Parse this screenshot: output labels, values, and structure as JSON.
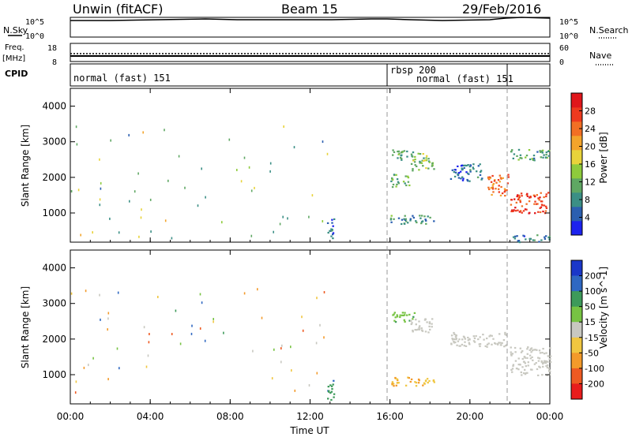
{
  "header": {
    "station": "Unwin (fitACF)",
    "beam": "Beam 15",
    "date": "29/Feb/2016"
  },
  "strip_labels": {
    "nsky": "N.Sky",
    "nsearch": "N.Search",
    "freq": "Freq.",
    "freq_unit": "[MHz]",
    "nave": "Nave",
    "cpid": "CPID"
  },
  "strip_ticks": {
    "noise_left_top": "10^5",
    "noise_left_bottom": "10^0",
    "noise_right_top": "10^5",
    "noise_right_bottom": "10^0",
    "freq_left_top": "18",
    "freq_left_bottom": "8",
    "nave_right_top": "60",
    "nave_right_bottom": "0"
  },
  "cpid": [
    {
      "label": "normal (fast) 151",
      "start_hour": 0,
      "end_hour": 16
    },
    {
      "label": "rbsp 200",
      "start_hour": 16,
      "end_hour": 22
    },
    {
      "label": "normal (fast) 151",
      "start_hour": 16,
      "end_hour": 22
    }
  ],
  "axes": {
    "time_ticks": [
      "00:00",
      "04:00",
      "08:00",
      "12:00",
      "16:00",
      "20:00",
      "00:00"
    ],
    "time_label": "Time UT",
    "range_ticks": [
      "1000",
      "2000",
      "3000",
      "4000"
    ],
    "range_label": "Slant Range [km]"
  },
  "power_scale": {
    "label": "Power [dB]",
    "ticks": [
      "4",
      "8",
      "12",
      "16",
      "20",
      "24",
      "28"
    ],
    "colors": [
      "#1c22ee",
      "#2b5fb0",
      "#3b8f85",
      "#5fa763",
      "#8ecb3c",
      "#e8d33a",
      "#f3a42b",
      "#f26f24",
      "#ee3a1e",
      "#e0161b"
    ]
  },
  "velocity_scale": {
    "label": "Velocity [m s^-1]",
    "ticks": [
      "200",
      "100",
      "50",
      "15",
      "-15",
      "-50",
      "-100",
      "-200"
    ],
    "colors": [
      "#1a37c9",
      "#2f68c2",
      "#3d9a5a",
      "#77c343",
      "#c8c8c0",
      "#f0c640",
      "#f39a2a",
      "#ee5a22",
      "#e81c1c"
    ]
  },
  "chart_data": [
    {
      "type": "heatmap",
      "title": "Power",
      "xlabel": "Time UT",
      "ylabel": "Slant Range [km]",
      "xlim": [
        0,
        24
      ],
      "ylim": [
        180,
        4500
      ],
      "colorbar": {
        "label": "Power [dB]",
        "range": [
          0,
          32
        ]
      },
      "regions": [
        {
          "t0": 16.0,
          "t1": 17.2,
          "r0": 2500,
          "r1": 2800,
          "value": 10
        },
        {
          "t0": 16.0,
          "t1": 17.0,
          "r0": 1750,
          "r1": 2100,
          "value": 12
        },
        {
          "t0": 17.0,
          "t1": 18.2,
          "r0": 2200,
          "r1": 2700,
          "value": 13
        },
        {
          "t0": 19.0,
          "t1": 20.6,
          "r0": 1900,
          "r1": 2400,
          "value": 6
        },
        {
          "t0": 16.0,
          "t1": 18.2,
          "r0": 700,
          "r1": 950,
          "value": 9
        },
        {
          "t0": 20.8,
          "t1": 21.9,
          "r0": 1500,
          "r1": 2100,
          "value": 24
        },
        {
          "t0": 22.0,
          "t1": 23.9,
          "r0": 1000,
          "r1": 1600,
          "value": 27
        },
        {
          "t0": 22.0,
          "t1": 24.0,
          "r0": 2500,
          "r1": 2800,
          "value": 10
        },
        {
          "t0": 22.0,
          "t1": 24.0,
          "r0": 200,
          "r1": 400,
          "value": 7
        },
        {
          "t0": 12.8,
          "t1": 13.2,
          "r0": 300,
          "r1": 900,
          "value": 6
        }
      ]
    },
    {
      "type": "heatmap",
      "title": "Velocity",
      "xlabel": "Time UT",
      "ylabel": "Slant Range [km]",
      "xlim": [
        0,
        24
      ],
      "ylim": [
        180,
        4500
      ],
      "colorbar": {
        "label": "Velocity [m s^-1]",
        "range": [
          -200,
          200
        ]
      },
      "regions": [
        {
          "t0": 16.0,
          "t1": 17.2,
          "r0": 2500,
          "r1": 2800,
          "value": 60
        },
        {
          "t0": 16.0,
          "t1": 18.2,
          "r0": 700,
          "r1": 950,
          "value": -60
        },
        {
          "t0": 17.0,
          "t1": 18.2,
          "r0": 2200,
          "r1": 2600,
          "value": 0
        },
        {
          "t0": 19.0,
          "t1": 21.9,
          "r0": 1800,
          "r1": 2200,
          "value": 0
        },
        {
          "t0": 22.0,
          "t1": 24.0,
          "r0": 1000,
          "r1": 1800,
          "value": 0
        },
        {
          "t0": 12.8,
          "t1": 13.2,
          "r0": 300,
          "r1": 900,
          "value": 100
        }
      ]
    }
  ]
}
